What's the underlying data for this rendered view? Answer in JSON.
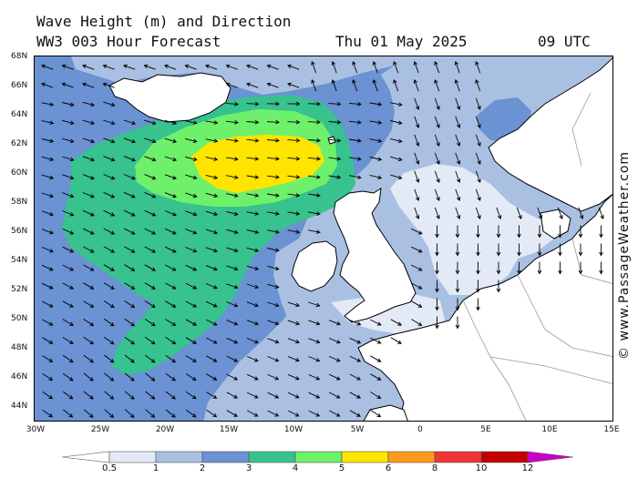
{
  "header": {
    "title": "Wave Height (m) and Direction",
    "model": "WW3 003 Hour Forecast",
    "date": "Thu 01 May 2025",
    "time": "09 UTC"
  },
  "axes": {
    "lat_labels": [
      "68N",
      "66N",
      "64N",
      "62N",
      "60N",
      "58N",
      "56N",
      "54N",
      "52N",
      "50N",
      "48N",
      "46N",
      "44N"
    ],
    "lon_labels": [
      "30W",
      "25W",
      "20W",
      "15W",
      "10W",
      "5W",
      "0",
      "5E",
      "10E",
      "15E"
    ]
  },
  "legend": {
    "labels": [
      "0.5",
      "1",
      "2",
      "3",
      "4",
      "5",
      "6",
      "8",
      "10",
      "12"
    ],
    "colors": [
      "#ffffff",
      "#e3eaf6",
      "#aac0e2",
      "#6b92d2",
      "#38c28e",
      "#6ef06a",
      "#ffe400",
      "#ff9a1a",
      "#ee3535",
      "#c40000",
      "#c800c8"
    ]
  },
  "credit": "© www.PassageWeather.com",
  "map": {
    "region": "North Atlantic / North Sea",
    "colors": {
      "land": "#ffffff",
      "coast": "#000000",
      "border": "#999999",
      "arrow": "#000000"
    }
  }
}
